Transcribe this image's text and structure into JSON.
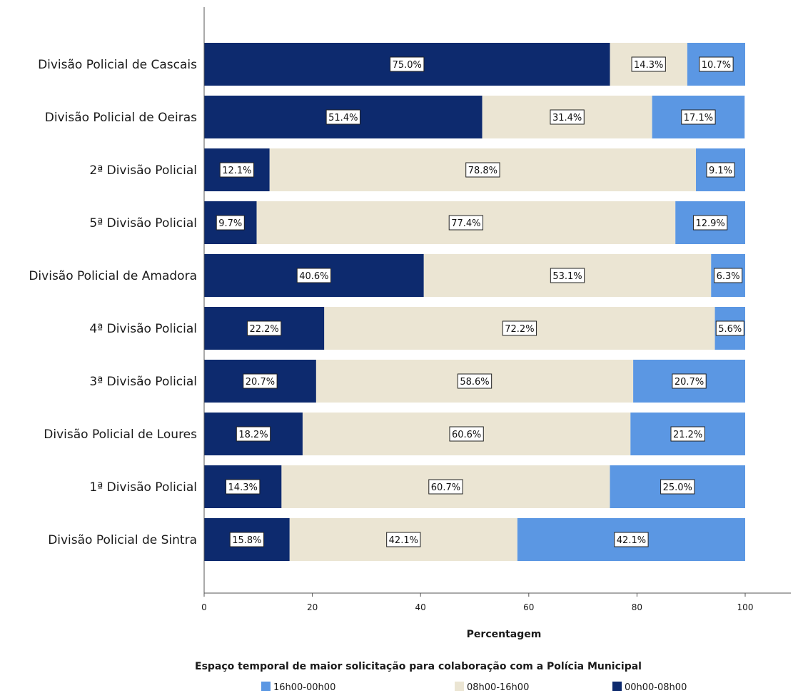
{
  "chart_data": {
    "type": "bar",
    "orientation": "horizontal",
    "stacked": true,
    "categories": [
      "Divisão Policial de Cascais",
      "Divisão Policial de Oeiras",
      "2ª Divisão Policial",
      "5ª Divisão Policial",
      "Divisão Policial de Amadora",
      "4ª Divisão Policial",
      "3ª Divisão Policial",
      "Divisão Policial de Loures",
      "1ª Divisão Policial",
      "Divisão Policial de Sintra"
    ],
    "series": [
      {
        "name": "00h00-08h00",
        "color": "#0d2a6e",
        "values": [
          75.0,
          51.4,
          12.1,
          9.7,
          40.6,
          22.2,
          20.7,
          18.2,
          14.3,
          15.8
        ],
        "labels": [
          "75.0%",
          "51.4%",
          "12.1%",
          "9.7%",
          "40.6%",
          "22.2%",
          "20.7%",
          "18.2%",
          "14.3%",
          "15.8%"
        ]
      },
      {
        "name": "08h00-16h00",
        "color": "#ebe5d3",
        "values": [
          14.3,
          31.4,
          78.8,
          77.4,
          53.1,
          72.2,
          58.6,
          60.6,
          60.7,
          42.1
        ],
        "labels": [
          "14.3%",
          "31.4%",
          "78.8%",
          "77.4%",
          "53.1%",
          "72.2%",
          "58.6%",
          "60.6%",
          "60.7%",
          "42.1%"
        ]
      },
      {
        "name": "16h00-00h00",
        "color": "#5b97e3",
        "values": [
          10.7,
          17.1,
          9.1,
          12.9,
          6.3,
          5.6,
          20.7,
          21.2,
          25.0,
          42.1
        ],
        "labels": [
          "10.7%",
          "17.1%",
          "9.1%",
          "12.9%",
          "6.3%",
          "5.6%",
          "20.7%",
          "21.2%",
          "25.0%",
          "42.1%"
        ]
      }
    ],
    "xlabel": "Percentagem",
    "ylabel": "",
    "xlim": [
      0,
      100
    ],
    "xticks": [
      0,
      20,
      40,
      60,
      80,
      100
    ],
    "xtick_labels": [
      "0",
      "20",
      "40",
      "60",
      "80",
      "100"
    ],
    "grid": false,
    "legend": {
      "title": "Espaço temporal de maior solicitação para colaboração com a Polícia Municipal",
      "placement": "bottom",
      "order": [
        "16h00-00h00",
        "08h00-16h00",
        "00h00-08h00"
      ]
    }
  }
}
